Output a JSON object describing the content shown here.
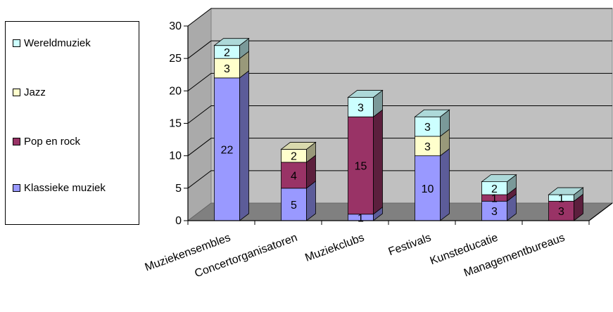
{
  "chart_data": {
    "type": "bar",
    "stacked": true,
    "three_d": true,
    "categories": [
      "Muziekensembles",
      "Concertorganisatoren",
      "Muziekclubs",
      "Festivals",
      "Kunsteducatie",
      "Managementbureaus"
    ],
    "series": [
      {
        "name": "Klassieke muziek",
        "values": [
          22,
          5,
          1,
          10,
          3,
          0
        ],
        "color": "#9999ff"
      },
      {
        "name": "Pop en rock",
        "values": [
          0,
          4,
          15,
          0,
          1,
          3
        ],
        "color": "#993366"
      },
      {
        "name": "Jazz",
        "values": [
          3,
          2,
          0,
          3,
          0,
          0
        ],
        "color": "#ffffcc"
      },
      {
        "name": "Wereldmuziek",
        "values": [
          2,
          0,
          3,
          3,
          2,
          1
        ],
        "color": "#ccffff"
      }
    ],
    "data_labels": [
      [
        "22",
        "5",
        "1",
        "10",
        "3",
        ""
      ],
      [
        "",
        "4",
        "15",
        "",
        "1",
        "3"
      ],
      [
        "3",
        "2",
        "",
        "3",
        "",
        ""
      ],
      [
        "2",
        "",
        "3",
        "3",
        "2",
        "1"
      ]
    ],
    "y_ticks": [
      "0",
      "5",
      "10",
      "15",
      "20",
      "25",
      "30"
    ],
    "ylim": [
      0,
      30
    ],
    "grid": true,
    "legend_position": "left",
    "colors": {
      "wall": "#c0c0c0",
      "floor": "#808080",
      "gridline": "#000000"
    }
  }
}
